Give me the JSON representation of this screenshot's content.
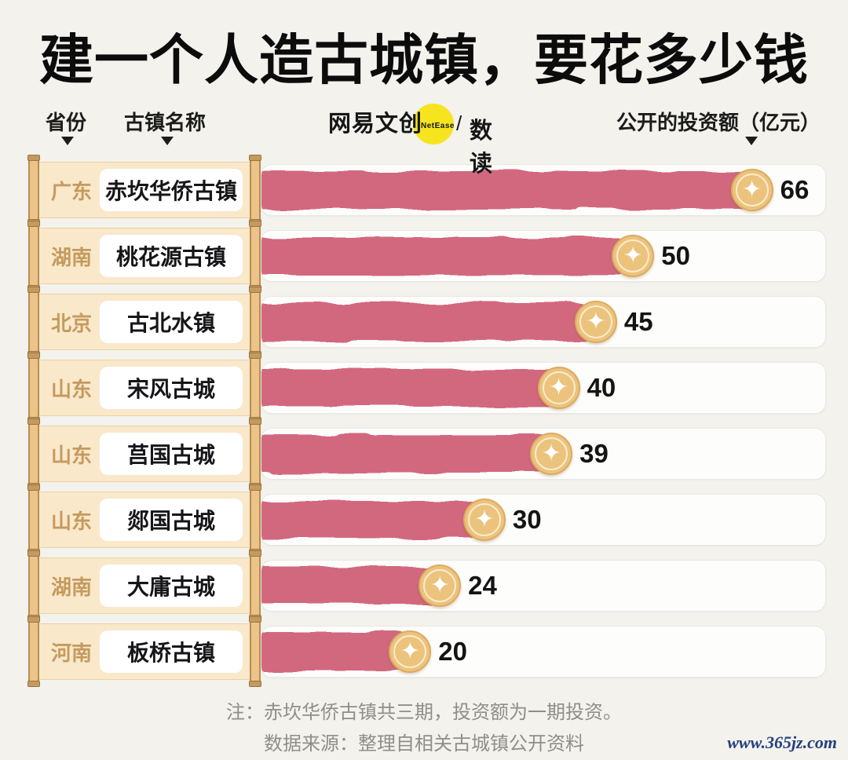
{
  "title": "建一个人造古城镇，要花多少钱",
  "header": {
    "col_province": "省份",
    "col_town": "古镇名称",
    "col_value": "公开的投资额（亿元）",
    "logo": {
      "brand": "网易文创",
      "netease": "NetEase",
      "slash": "/",
      "sub": "数读"
    }
  },
  "chart_data": {
    "type": "bar",
    "orientation": "horizontal",
    "title": "建一个人造古城镇，要花多少钱",
    "value_label": "公开的投资额（亿元）",
    "unit": "亿元",
    "max_value": 66,
    "max_bar_pct": 87,
    "rows": [
      {
        "province": "广东",
        "town": "赤坎华侨古镇",
        "value": 66
      },
      {
        "province": "湖南",
        "town": "桃花源古镇",
        "value": 50
      },
      {
        "province": "北京",
        "town": "古北水镇",
        "value": 45
      },
      {
        "province": "山东",
        "town": "宋风古城",
        "value": 40
      },
      {
        "province": "山东",
        "town": "莒国古城",
        "value": 39
      },
      {
        "province": "山东",
        "town": "郯国古城",
        "value": 30
      },
      {
        "province": "湖南",
        "town": "大庸古城",
        "value": 24
      },
      {
        "province": "河南",
        "town": "板桥古镇",
        "value": 20
      }
    ],
    "colors": {
      "bar": "#d2687e",
      "coin": "#ecc37d",
      "coin_border": "#dcab60",
      "scroll_body": "#f9e8ca",
      "scroll_roller": "#ecc489",
      "province_text": "#c59a5e",
      "accent_yellow": "#f6e41f",
      "background": "#f3f2ed"
    },
    "icons": {
      "coin_star": "✦"
    }
  },
  "notes": {
    "line1": "注：赤坎华侨古镇共三期，投资额为一期投资。",
    "line2": "数据来源：整理自相关古城镇公开资料"
  },
  "watermark": "www.365jz.com"
}
